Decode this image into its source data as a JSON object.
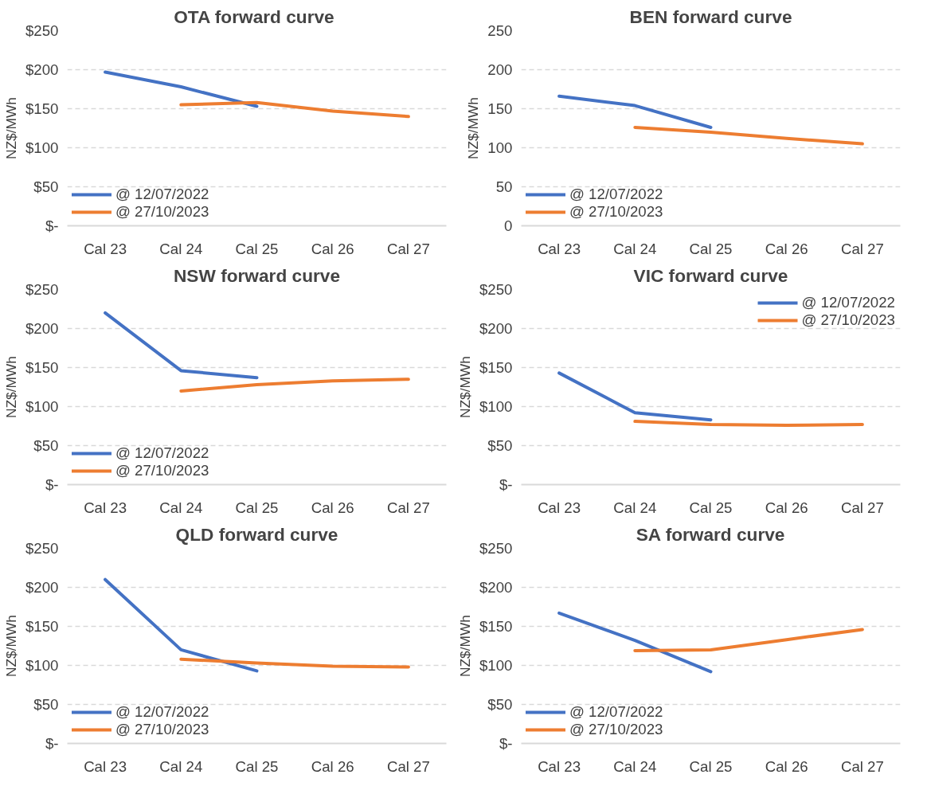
{
  "chart_data": [
    {
      "type": "line",
      "title": "OTA  forward curve",
      "ylabel": "NZ$/MWh",
      "categories": [
        "Cal 23",
        "Cal 24",
        "Cal 25",
        "Cal 26",
        "Cal 27"
      ],
      "series": [
        {
          "name": "@ 12/07/2022",
          "color": "#4472c4",
          "values": [
            197,
            178,
            153,
            null,
            null
          ]
        },
        {
          "name": "@ 27/10/2023",
          "color": "#ed7d31",
          "values": [
            null,
            155,
            158,
            147,
            140
          ]
        }
      ],
      "ylim": [
        0,
        250
      ],
      "yticks": [
        {
          "value": 0,
          "label": "$-"
        },
        {
          "value": 50,
          "label": "$50"
        },
        {
          "value": 100,
          "label": "$100"
        },
        {
          "value": 150,
          "label": "$150"
        },
        {
          "value": 200,
          "label": "$200"
        },
        {
          "value": 250,
          "label": "$250"
        }
      ],
      "grid": "y",
      "legend": "bottom left"
    },
    {
      "type": "line",
      "title": "BEN forward curve",
      "ylabel": "NZ$/MWh",
      "categories": [
        "Cal 23",
        "Cal 24",
        "Cal 25",
        "Cal 26",
        "Cal 27"
      ],
      "series": [
        {
          "name": "@ 12/07/2022",
          "color": "#4472c4",
          "values": [
            166,
            154,
            126,
            null,
            null
          ]
        },
        {
          "name": "@ 27/10/2023",
          "color": "#ed7d31",
          "values": [
            null,
            126,
            120,
            112,
            105
          ]
        }
      ],
      "ylim": [
        0,
        250
      ],
      "yticks": [
        0,
        50,
        100,
        150,
        200,
        250
      ],
      "grid": "y",
      "legend": "bottom left"
    },
    {
      "type": "line",
      "title": "NSW forward curve",
      "ylabel": "NZ$/MWh",
      "categories": [
        "Cal 23",
        "Cal 24",
        "Cal 25",
        "Cal 26",
        "Cal 27"
      ],
      "series": [
        {
          "name": "@ 12/07/2022",
          "color": "#4472c4",
          "values": [
            220,
            146,
            137,
            null,
            null
          ]
        },
        {
          "name": "@ 27/10/2023",
          "color": "#ed7d31",
          "values": [
            null,
            120,
            128,
            133,
            135
          ]
        }
      ],
      "ylim": [
        0,
        250
      ],
      "yticks": [
        {
          "value": 0,
          "label": "$-"
        },
        {
          "value": 50,
          "label": "$50"
        },
        {
          "value": 100,
          "label": "$100"
        },
        {
          "value": 150,
          "label": "$150"
        },
        {
          "value": 200,
          "label": "$200"
        },
        {
          "value": 250,
          "label": "$250"
        }
      ],
      "grid": "y",
      "legend": "bottom left"
    },
    {
      "type": "line",
      "title": "VIC forward curve",
      "ylabel": "NZ$/MWh",
      "categories": [
        "Cal 23",
        "Cal 24",
        "Cal 25",
        "Cal 26",
        "Cal 27"
      ],
      "series": [
        {
          "name": "@ 12/07/2022",
          "color": "#4472c4",
          "values": [
            143,
            92,
            83,
            null,
            null
          ]
        },
        {
          "name": "@ 27/10/2023",
          "color": "#ed7d31",
          "values": [
            null,
            81,
            77,
            76,
            77
          ]
        }
      ],
      "ylim": [
        0,
        250
      ],
      "yticks": [
        {
          "value": 0,
          "label": "$-"
        },
        {
          "value": 50,
          "label": "$50"
        },
        {
          "value": 100,
          "label": "$100"
        },
        {
          "value": 150,
          "label": "$150"
        },
        {
          "value": 200,
          "label": "$200"
        },
        {
          "value": 250,
          "label": "$250"
        }
      ],
      "grid": "y",
      "legend": "top right"
    },
    {
      "type": "line",
      "title": "QLD forward curve",
      "ylabel": "NZ$/MWh",
      "categories": [
        "Cal 23",
        "Cal 24",
        "Cal 25",
        "Cal 26",
        "Cal 27"
      ],
      "series": [
        {
          "name": "@ 12/07/2022",
          "color": "#4472c4",
          "values": [
            210,
            120,
            93,
            null,
            null
          ]
        },
        {
          "name": "@ 27/10/2023",
          "color": "#ed7d31",
          "values": [
            null,
            108,
            103,
            99,
            98
          ]
        }
      ],
      "ylim": [
        0,
        250
      ],
      "yticks": [
        {
          "value": 0,
          "label": "$-"
        },
        {
          "value": 50,
          "label": "$50"
        },
        {
          "value": 100,
          "label": "$100"
        },
        {
          "value": 150,
          "label": "$150"
        },
        {
          "value": 200,
          "label": "$200"
        },
        {
          "value": 250,
          "label": "$250"
        }
      ],
      "grid": "y",
      "legend": "bottom left"
    },
    {
      "type": "line",
      "title": "SA forward curve",
      "ylabel": "NZ$/MWh",
      "categories": [
        "Cal 23",
        "Cal 24",
        "Cal 25",
        "Cal 26",
        "Cal 27"
      ],
      "series": [
        {
          "name": "@ 12/07/2022",
          "color": "#4472c4",
          "values": [
            167,
            132,
            92,
            null,
            null
          ]
        },
        {
          "name": "@ 27/10/2023",
          "color": "#ed7d31",
          "values": [
            null,
            119,
            120,
            133,
            146
          ]
        }
      ],
      "ylim": [
        0,
        250
      ],
      "yticks": [
        {
          "value": 0,
          "label": "$-"
        },
        {
          "value": 50,
          "label": "$50"
        },
        {
          "value": 100,
          "label": "$100"
        },
        {
          "value": 150,
          "label": "$150"
        },
        {
          "value": 200,
          "label": "$200"
        },
        {
          "value": 250,
          "label": "$250"
        }
      ],
      "grid": "y",
      "legend": "bottom left"
    }
  ]
}
